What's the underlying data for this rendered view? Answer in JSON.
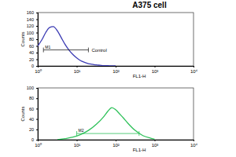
{
  "chart_data": [
    {
      "type": "line",
      "title": "A375 cell",
      "x_label": "FL1-H",
      "y_label": "Counts",
      "x": [
        1,
        1.3,
        1.6,
        2,
        2.5,
        3.2,
        4,
        5,
        6.3,
        8,
        10,
        12.6,
        15.8,
        20,
        25,
        32,
        40,
        50,
        63,
        80,
        100
      ],
      "values": [
        60,
        80,
        100,
        115,
        118,
        105,
        85,
        65,
        48,
        34,
        24,
        16,
        11,
        7,
        5,
        3,
        2,
        1,
        1,
        0,
        0
      ],
      "color": "#3b3bb3",
      "log": "x",
      "xlim": [
        1,
        10000
      ],
      "xticks": [
        {
          "value": 1,
          "label": "10⁰"
        },
        {
          "value": 10,
          "label": "10¹"
        },
        {
          "value": 100,
          "label": "10²"
        },
        {
          "value": 1000,
          "label": "10³"
        },
        {
          "value": 10000,
          "label": "10⁴"
        }
      ],
      "ylim": [
        0,
        160
      ],
      "yticks": [
        0,
        20,
        40,
        60,
        80,
        100,
        120,
        140,
        160
      ],
      "gate": {
        "label": "M1",
        "range": [
          1.4,
          20
        ]
      },
      "annotation": "Control"
    },
    {
      "type": "line",
      "x_label": "FL1-H",
      "y_label": "Counts",
      "x": [
        3.2,
        5,
        8,
        12.6,
        20,
        32,
        50,
        63,
        80,
        100,
        126,
        158,
        200,
        316,
        500,
        794,
        1000
      ],
      "values": [
        0,
        2,
        5,
        10,
        18,
        30,
        45,
        55,
        62,
        58,
        50,
        42,
        33,
        18,
        8,
        3,
        1
      ],
      "color": "#2fc15a",
      "log": "x",
      "xlim": [
        1,
        10000
      ],
      "xticks": [
        {
          "value": 1,
          "label": "10⁰"
        },
        {
          "value": 10,
          "label": "10¹"
        },
        {
          "value": 100,
          "label": "10²"
        },
        {
          "value": 1000,
          "label": "10³"
        },
        {
          "value": 10000,
          "label": "10⁴"
        }
      ],
      "ylim": [
        0,
        100
      ],
      "yticks": [
        0,
        20,
        40,
        60,
        80,
        100
      ],
      "gate": {
        "label": "M2",
        "range": [
          10,
          400
        ]
      }
    }
  ]
}
